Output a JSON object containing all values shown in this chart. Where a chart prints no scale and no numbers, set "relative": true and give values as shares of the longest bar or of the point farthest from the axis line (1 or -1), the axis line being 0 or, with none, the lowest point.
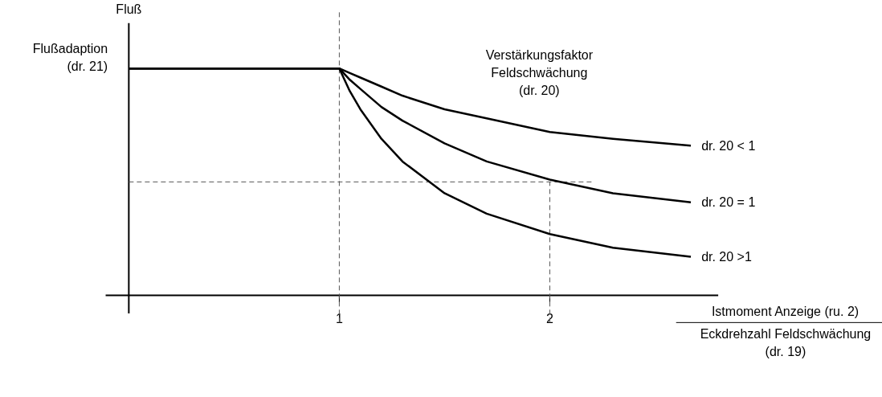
{
  "chart_data": {
    "type": "line",
    "relative": true,
    "ylabel": "Fluß",
    "xlabel": "Istmoment Anzeige (ru. 2)\nEckdrehzahl Feldschwächung\n(dr. 19)",
    "x": [
      0,
      1,
      1.05,
      1.1,
      1.2,
      1.3,
      1.5,
      1.7,
      2,
      2.3,
      2.67
    ],
    "series": [
      {
        "name": "dr. 20 < 1",
        "color": "#000000",
        "values": [
          1,
          1,
          0.98,
          0.96,
          0.92,
          0.88,
          0.82,
          0.78,
          0.72,
          0.69,
          0.66
        ]
      },
      {
        "name": "dr. 20 = 1",
        "color": "#000000",
        "values": [
          1,
          1,
          0.95,
          0.91,
          0.83,
          0.77,
          0.67,
          0.59,
          0.51,
          0.45,
          0.41
        ]
      },
      {
        "name": "dr. 20 >1",
        "color": "#000000",
        "values": [
          1,
          1,
          0.9,
          0.82,
          0.69,
          0.59,
          0.45,
          0.36,
          0.27,
          0.21,
          0.17
        ]
      }
    ],
    "xlim": [
      -0.11,
      2.8
    ],
    "xticks": [
      1,
      2
    ],
    "ref_lines": [
      {
        "axis": "x",
        "value": 1,
        "color": "#555555",
        "line_style": "dashed"
      },
      {
        "axis": "x",
        "value": 2,
        "color": "#555555",
        "line_style": "dashed"
      },
      {
        "axis": "y",
        "value": 0.5,
        "color": "#555555",
        "line_style": "dashed"
      }
    ],
    "annotations": [
      {
        "text": "Flußadaption\n(dr. 21)",
        "x": 0,
        "y": 1
      },
      "Verstärkungsfaktor\nFeldschwächung\n(dr. 20)"
    ],
    "grid": false,
    "line_style": "solid",
    "marker": "none"
  }
}
